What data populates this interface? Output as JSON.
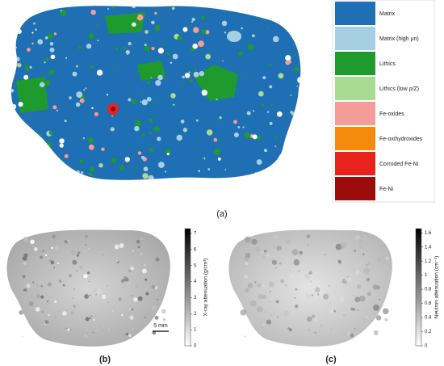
{
  "panels": {
    "a": "(a)",
    "b": "(b)",
    "c": "(c)"
  },
  "legend": [
    {
      "label": "Matrix",
      "color": "#1f6fb4"
    },
    {
      "label": "Matrix (high μn)",
      "color": "#a6cfe4"
    },
    {
      "label": "Lithics",
      "color": "#1f9a2d"
    },
    {
      "label": "Lithics (low ρ/Z)",
      "color": "#a8dc93"
    },
    {
      "label": "Fe-oxides",
      "color": "#f49c98"
    },
    {
      "label": "Fe-oxihydroxides",
      "color": "#f58a0b"
    },
    {
      "label": "Corroded Fe-Ni",
      "color": "#e8231e"
    },
    {
      "label": "Fe-Ni",
      "color": "#9b0c0c"
    }
  ],
  "scale_bar": "5 mm",
  "colorbars": [
    {
      "label": "X-ray attenuation (g/cm³)",
      "lim": [
        0,
        7.3
      ],
      "ticks": [
        0,
        1,
        2,
        3,
        4,
        5,
        6,
        7
      ]
    },
    {
      "label": "Neutron attenuation (cm⁻¹)",
      "lim": [
        0,
        1.66
      ],
      "ticks": [
        0,
        0.2,
        0.4,
        0.6,
        0.8,
        1,
        1.2,
        1.4,
        1.6
      ]
    }
  ]
}
